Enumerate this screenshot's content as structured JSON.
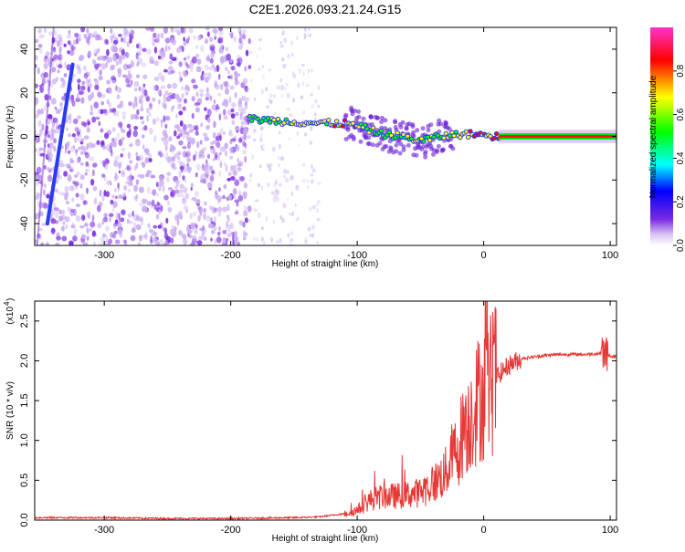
{
  "chart_data": [
    {
      "type": "heatmap",
      "title": "C2E1.2026.093.21.24.G15",
      "xlabel": "Height of straight line (km)",
      "ylabel": "Frequency (Hz)",
      "xlim": [
        -355,
        105
      ],
      "ylim": [
        -50,
        50
      ],
      "x_ticks": [
        -300,
        -200,
        -100,
        0,
        100
      ],
      "x_tick_labels": [
        "-300",
        "-200",
        "-100",
        "0",
        "100"
      ],
      "y_ticks": [
        -40,
        -20,
        0,
        20,
        40
      ],
      "y_tick_labels": [
        "-40",
        "-20",
        "0",
        "20",
        "40"
      ],
      "colorbar": {
        "label": "Normalized spectral amplitude",
        "range": [
          0.0,
          1.0
        ],
        "ticks": [
          0.0,
          0.2,
          0.4,
          0.6,
          0.8
        ],
        "tick_labels": [
          "0.0",
          "0.2",
          "0.4",
          "0.6",
          "0.8"
        ],
        "colormap": [
          "#ffffff",
          "#c8a8f0",
          "#7a2be0",
          "#0000ff",
          "#00ffff",
          "#00ff00",
          "#ffff00",
          "#ff0000",
          "#ff33cc"
        ]
      },
      "noise_region_x": [
        -355,
        -185
      ],
      "sparse_region_x": [
        -185,
        -130
      ],
      "signal_track": [
        {
          "x": -185,
          "y": 8,
          "amp": 0.4
        },
        {
          "x": -160,
          "y": 7,
          "amp": 0.5
        },
        {
          "x": -130,
          "y": 6,
          "amp": 0.55
        },
        {
          "x": -110,
          "y": 6,
          "amp": 0.7
        },
        {
          "x": -95,
          "y": 4,
          "amp": 0.5
        },
        {
          "x": -80,
          "y": 1,
          "amp": 0.45
        },
        {
          "x": -65,
          "y": 0,
          "amp": 0.5
        },
        {
          "x": -50,
          "y": -2,
          "amp": 0.5
        },
        {
          "x": -35,
          "y": 0,
          "amp": 0.45
        },
        {
          "x": -20,
          "y": 1,
          "amp": 0.6
        },
        {
          "x": -5,
          "y": 1,
          "amp": 0.7
        },
        {
          "x": 10,
          "y": 0,
          "amp": 0.75
        },
        {
          "x": 105,
          "y": 0,
          "amp": 0.9
        }
      ],
      "diagonal_artifact": {
        "x": [
          -345,
          -325
        ],
        "y": [
          -40,
          33
        ],
        "amp": 0.2
      }
    },
    {
      "type": "line",
      "xlabel": "Height of straight line (km)",
      "ylabel": "SNR (10 * v/v)",
      "y_scale_label": "(x10",
      "y_scale_exponent": "4",
      "xlim": [
        -355,
        105
      ],
      "ylim": [
        0,
        2.75
      ],
      "x_ticks": [
        -300,
        -200,
        -100,
        0,
        100
      ],
      "x_tick_labels": [
        "-300",
        "-200",
        "-100",
        "0",
        "100"
      ],
      "y_ticks": [
        0.0,
        0.5,
        1.0,
        1.5,
        2.0,
        2.5
      ],
      "y_tick_labels": [
        "0.0",
        "0.5",
        "1.0",
        "1.5",
        "2.0",
        "2.5"
      ],
      "series": [
        {
          "name": "SNR",
          "color": "#e53935",
          "x": [
            -355,
            -300,
            -250,
            -200,
            -150,
            -130,
            -110,
            -100,
            -90,
            -80,
            -70,
            -60,
            -50,
            -40,
            -30,
            -25,
            -20,
            -17,
            -15,
            -12,
            -10,
            -5,
            0,
            10,
            20,
            30,
            40,
            50,
            60,
            70,
            80,
            90,
            95,
            100,
            105
          ],
          "y": [
            0.03,
            0.03,
            0.02,
            0.02,
            0.03,
            0.04,
            0.08,
            0.12,
            0.25,
            0.3,
            0.3,
            0.32,
            0.35,
            0.45,
            0.6,
            0.8,
            0.9,
            1.1,
            1.3,
            1.2,
            1.35,
            1.5,
            1.6,
            1.8,
            1.95,
            2.03,
            2.05,
            2.07,
            2.08,
            2.08,
            2.08,
            2.09,
            2.1,
            2.06,
            2.05
          ]
        }
      ]
    }
  ]
}
